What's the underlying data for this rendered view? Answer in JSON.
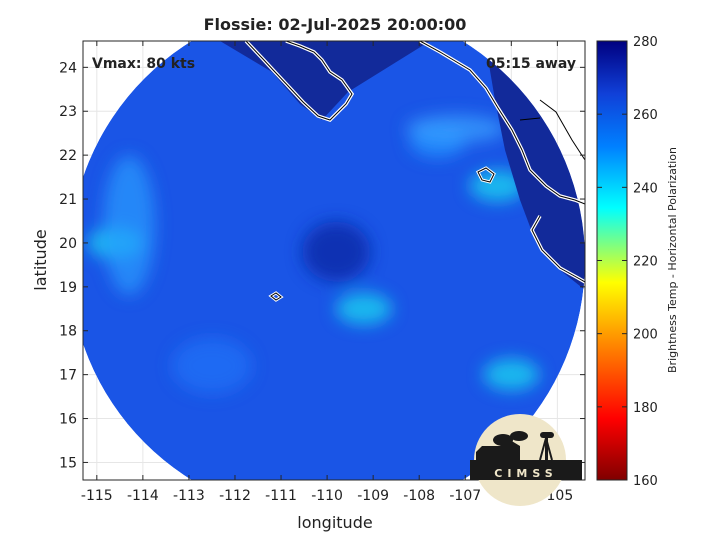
{
  "chart_data": {
    "type": "heatmap",
    "title": "Flossie: 02-Jul-2025 20:00:00",
    "xlabel": "longitude",
    "ylabel": "latitude",
    "xlim": [
      -115.3,
      -104.4
    ],
    "ylim": [
      14.6,
      24.6
    ],
    "x_ticks": [
      -115,
      -114,
      -113,
      -112,
      -111,
      -110,
      -109,
      -108,
      -107,
      -106,
      -105
    ],
    "y_ticks": [
      15,
      16,
      17,
      18,
      19,
      20,
      21,
      22,
      23,
      24
    ],
    "grid": true,
    "annotations": {
      "vmax": "Vmax: 80 kts",
      "away": "05:15 away"
    },
    "swath": {
      "center": [
        -110.0,
        19.6
      ],
      "radius_deg": 5.6,
      "storm_center": [
        -109.8,
        19.7
      ],
      "background_temp_k": 262,
      "features": [
        {
          "x": -109.8,
          "y": 19.8,
          "temp_k": 272,
          "label": "eye"
        },
        {
          "x": -109.2,
          "y": 18.5,
          "temp_k": 240,
          "label": "convective band"
        },
        {
          "x": -107.6,
          "y": 22.3,
          "temp_k": 245,
          "label": "rain band"
        },
        {
          "x": -114.6,
          "y": 20.0,
          "temp_k": 240,
          "label": "western edge"
        },
        {
          "x": -106.0,
          "y": 17.0,
          "temp_k": 235,
          "label": "southeast band"
        },
        {
          "x": -106.3,
          "y": 21.3,
          "temp_k": 240,
          "label": "coastal convection"
        }
      ]
    },
    "colorbar": {
      "label": "Brightness Temp - Horizontal Polarization",
      "min": 160,
      "max": 280,
      "ticks": [
        160,
        180,
        200,
        220,
        240,
        260,
        280
      ],
      "colors": [
        "#800000",
        "#ff0000",
        "#ff8000",
        "#ffff00",
        "#00ffff",
        "#0080ff",
        "#1040d8",
        "#000080"
      ]
    },
    "logo": "CIMSS"
  }
}
